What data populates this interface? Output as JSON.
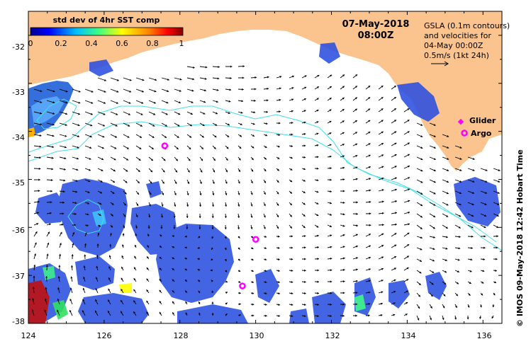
{
  "map": {
    "lon_range": [
      124,
      136.5
    ],
    "lat_range": [
      -38,
      -31.5
    ],
    "lon_ticks": [
      "124",
      "126",
      "128",
      "130",
      "132",
      "134",
      "136"
    ],
    "lat_ticks": [
      "-32",
      "-33",
      "-34",
      "-35",
      "-36",
      "-37",
      "-38"
    ],
    "land_color": "#fbc48e",
    "contour_color": "#40e0e8",
    "arrow_color": "#000000"
  },
  "colorbar": {
    "title": "std dev of 4hr SST comp",
    "tick_labels": [
      "0",
      "0.2",
      "0.4",
      "0.6",
      "0.8",
      "1"
    ],
    "colors": [
      "#00008f",
      "#0000ff",
      "#00bfff",
      "#40ff80",
      "#ffff00",
      "#ff8000",
      "#ff0000",
      "#800000"
    ]
  },
  "date": {
    "date_label": "07-May-2018",
    "time_label": "08:00Z"
  },
  "info": {
    "line1": "GSLA (0.1m contours)",
    "line2": "and velocities for",
    "line3": "04-May 00:00Z",
    "line4": "0.5m/s (1kt 24h)"
  },
  "legend": {
    "glider_label": "Glider",
    "argo_label": "Argo",
    "glider_color": "#ff00ff",
    "argo_color": "#ff00ff"
  },
  "credit": "© IMOS 09-May-2018 12:42 Hobart Time",
  "argo_floats": [
    {
      "lon": 127.6,
      "lat": -34.3
    },
    {
      "lon": 130.0,
      "lat": -36.25
    },
    {
      "lon": 129.65,
      "lat": -37.22
    }
  ]
}
